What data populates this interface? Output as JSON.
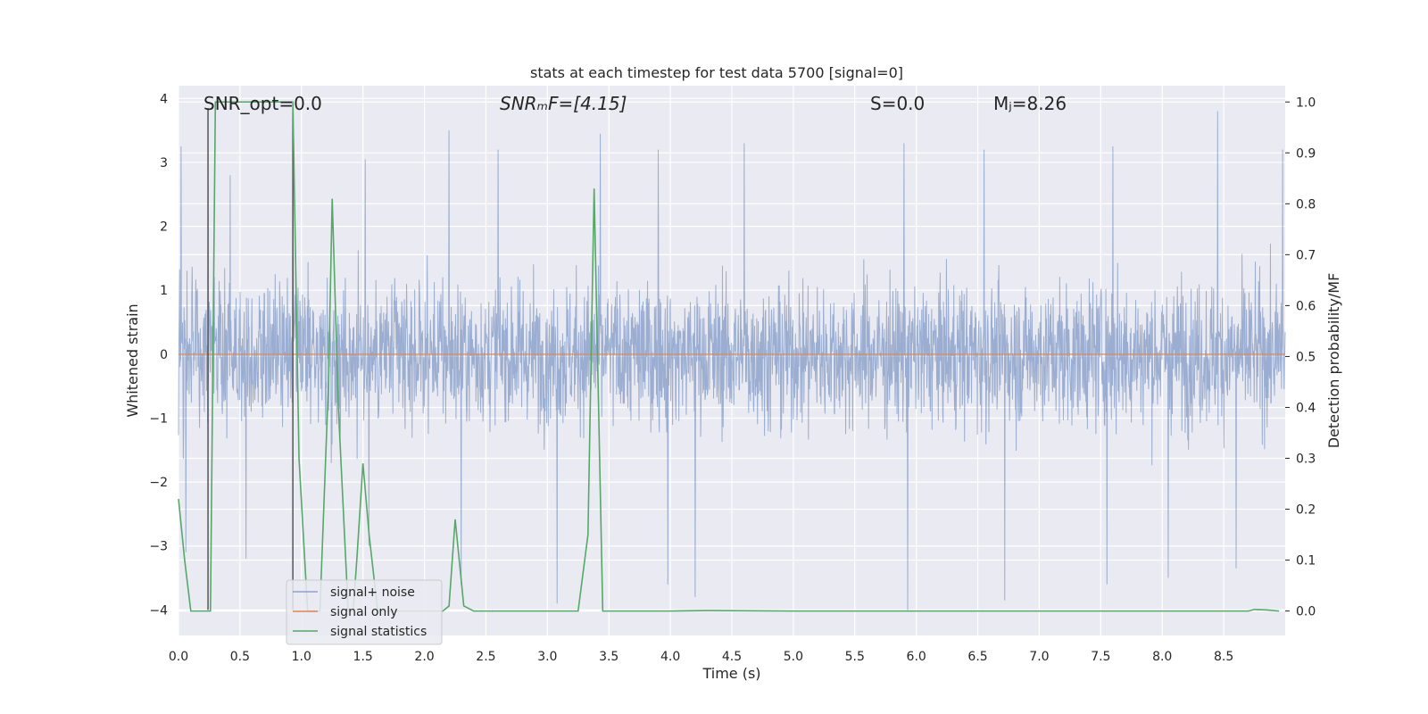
{
  "chart_data": {
    "type": "line",
    "title": "stats at each timestep for test data 5700 [signal=0]",
    "xlabel": "Time (s)",
    "ylabel_left": "Whitened strain",
    "ylabel_right": "Detection probability/MF",
    "xlim": [
      0.0,
      9.0
    ],
    "ylim_left": [
      -4.4,
      4.2
    ],
    "ylim_right": [
      -0.048,
      1.032
    ],
    "x_ticks": [
      0.0,
      0.5,
      1.0,
      1.5,
      2.0,
      2.5,
      3.0,
      3.5,
      4.0,
      4.5,
      5.0,
      5.5,
      6.0,
      6.5,
      7.0,
      7.5,
      8.0,
      8.5
    ],
    "x_tick_labels": [
      "0.0",
      "0.5",
      "1.0",
      "1.5",
      "2.0",
      "2.5",
      "3.0",
      "3.5",
      "4.0",
      "4.5",
      "5.0",
      "5.5",
      "6.0",
      "6.5",
      "7.0",
      "7.5",
      "8.0",
      "8.5"
    ],
    "y_left_ticks": [
      4,
      3,
      2,
      1,
      0,
      -1,
      -2,
      -3,
      -4
    ],
    "y_left_tick_labels": [
      "4",
      "3",
      "2",
      "1",
      "0",
      "−1",
      "−2",
      "−3",
      "−4"
    ],
    "y_right_ticks": [
      1.0,
      0.9,
      0.8,
      0.7,
      0.6,
      0.5,
      0.4,
      0.3,
      0.2,
      0.1,
      0.0
    ],
    "y_right_tick_labels": [
      "1.0",
      "0.9",
      "0.8",
      "0.7",
      "0.6",
      "0.5",
      "0.4",
      "0.3",
      "0.2",
      "0.1",
      "0.0"
    ],
    "annotations": {
      "snr_opt": "SNR_opt=0.0",
      "snr_mf": "SNRₘF=[4.15]",
      "s_value": "S=0.0",
      "mc_value": "Mⱼ=8.26"
    },
    "legend": {
      "placement": "lower-left",
      "entries": [
        "signal+ noise",
        "signal only",
        "signal statistics"
      ]
    },
    "colors": {
      "background": "#eaeaf2",
      "grid": "#ffffff",
      "noise": "#4c72b0",
      "signal": "#dd8452",
      "stats": "#55a868",
      "marker": "#555555"
    },
    "series": [
      {
        "name": "signal+ noise",
        "axis": "left",
        "description_envelope": {
          "x_range": [
            0.0,
            9.0
          ],
          "typical_upper": 2.2,
          "typical_lower": -2.2,
          "upper_peaks": [
            [
              0.02,
              3.25
            ],
            [
              0.24,
              2.6
            ],
            [
              0.42,
              2.8
            ],
            [
              0.93,
              3.0
            ],
            [
              1.52,
              3.05
            ],
            [
              2.2,
              3.5
            ],
            [
              2.6,
              3.2
            ],
            [
              3.43,
              3.45
            ],
            [
              3.9,
              3.2
            ],
            [
              4.6,
              3.3
            ],
            [
              5.9,
              3.3
            ],
            [
              6.55,
              3.2
            ],
            [
              7.6,
              3.25
            ],
            [
              8.45,
              3.8
            ],
            [
              8.98,
              3.2
            ]
          ],
          "lower_peaks": [
            [
              0.06,
              -3.1
            ],
            [
              0.55,
              -3.2
            ],
            [
              1.55,
              -3.0
            ],
            [
              2.3,
              -3.6
            ],
            [
              3.08,
              -3.9
            ],
            [
              3.98,
              -3.6
            ],
            [
              4.2,
              -3.8
            ],
            [
              5.93,
              -4.0
            ],
            [
              6.72,
              -3.85
            ],
            [
              7.55,
              -3.6
            ],
            [
              8.05,
              -3.5
            ],
            [
              8.6,
              -3.35
            ]
          ]
        }
      },
      {
        "name": "signal only",
        "axis": "left",
        "x": [
          0.0,
          9.0
        ],
        "values": [
          0.0,
          0.0
        ]
      },
      {
        "name": "signal statistics",
        "axis": "right",
        "x": [
          0.0,
          0.05,
          0.1,
          0.18,
          0.26,
          0.3,
          0.5,
          0.7,
          0.93,
          0.98,
          1.05,
          1.1,
          1.15,
          1.22,
          1.25,
          1.3,
          1.38,
          1.42,
          1.45,
          1.5,
          1.55,
          1.62,
          2.0,
          2.15,
          2.2,
          2.25,
          2.32,
          2.4,
          2.6,
          3.0,
          3.25,
          3.33,
          3.38,
          3.45,
          3.6,
          4.0,
          4.3,
          5.0,
          6.0,
          7.0,
          8.0,
          8.7,
          8.75,
          8.85,
          8.95
        ],
        "values": [
          0.22,
          0.1,
          0.0,
          0.0,
          0.0,
          1.0,
          1.0,
          1.0,
          1.0,
          0.3,
          0.0,
          0.0,
          0.0,
          0.45,
          0.81,
          0.4,
          0.0,
          0.0,
          0.1,
          0.29,
          0.15,
          0.0,
          0.0,
          0.0,
          0.01,
          0.18,
          0.01,
          0.0,
          0.0,
          0.0,
          0.0,
          0.15,
          0.83,
          0.0,
          0.0,
          0.0,
          0.001,
          0.0,
          0.0,
          0.0,
          0.0,
          0.0,
          0.003,
          0.002,
          0.0
        ]
      }
    ],
    "vertical_markers": {
      "axis": "left",
      "x": [
        0.24,
        0.93
      ],
      "y_range": [
        -4.0,
        3.85
      ]
    }
  }
}
